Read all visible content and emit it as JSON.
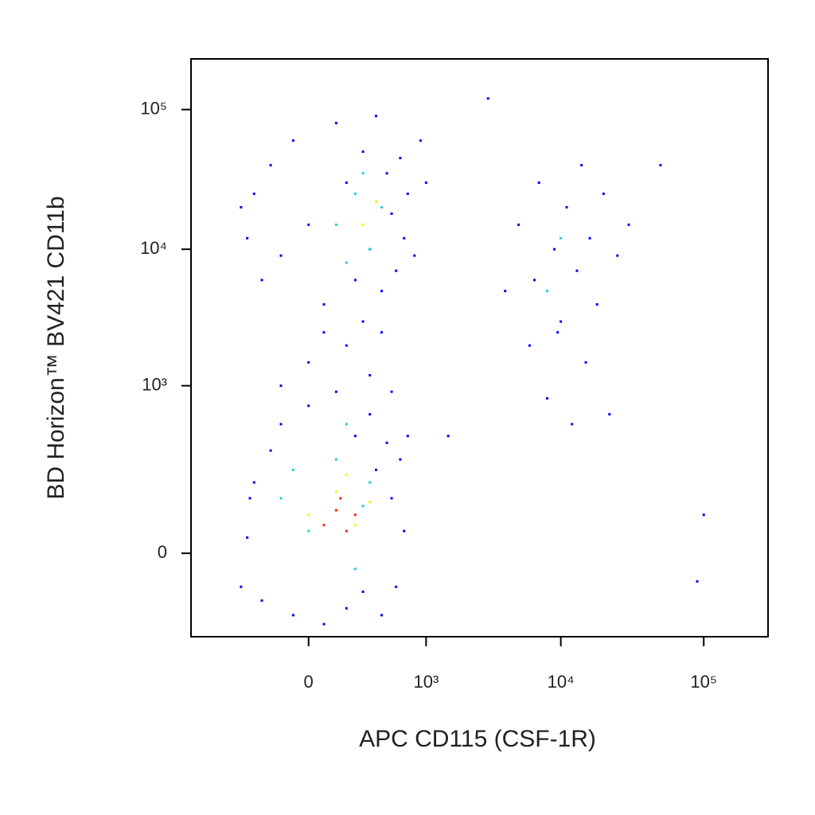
{
  "chart_data": {
    "type": "scatter",
    "scale": "biexponential",
    "x_label": "APC CD115 (CSF-1R)",
    "y_label": "BD Horizon™ BV421 CD11b",
    "xlim": [
      -1000,
      280000
    ],
    "ylim": [
      -200,
      230000
    ],
    "xticks": [
      0,
      {
        "value": 1000,
        "label": "10³"
      },
      {
        "value": 10000,
        "label": "10⁴"
      },
      {
        "value": 100000,
        "label": "10⁵"
      }
    ],
    "yticks": [
      0,
      {
        "value": 1000,
        "label": "10³"
      },
      {
        "value": 10000,
        "label": "10⁴"
      },
      {
        "value": 100000,
        "label": "10⁵"
      }
    ],
    "series": [
      {
        "color": "#0000ff",
        "x": [
          -300,
          -250,
          -200,
          -150,
          -100,
          -50,
          0,
          50,
          100,
          150,
          200,
          250,
          300,
          350,
          400,
          450,
          500,
          550,
          600,
          650,
          700,
          -350,
          -280,
          0,
          150,
          300,
          400,
          -100,
          500,
          250,
          50,
          -300,
          -250,
          -200,
          -150,
          -100,
          -50,
          0,
          50,
          100,
          150,
          200,
          250,
          300,
          350,
          400,
          450,
          500,
          550,
          600,
          650,
          700,
          800,
          900,
          -350,
          1000,
          4000,
          5000,
          6000,
          7000,
          8000,
          9000,
          10000,
          11000,
          12000,
          13000,
          14000,
          15000,
          16000,
          18000,
          20000,
          22000,
          25000,
          30000,
          6500,
          9500,
          100000,
          90000,
          1500,
          3000,
          50000
        ],
        "y": [
          20,
          150,
          -80,
          300,
          500,
          -120,
          700,
          -150,
          900,
          -100,
          400,
          -60,
          600,
          200,
          -120,
          350,
          100,
          -50,
          250,
          30,
          400,
          -50,
          100,
          1500,
          2000,
          1200,
          2500,
          1000,
          900,
          3000,
          2500,
          12000,
          25000,
          6000,
          40000,
          9000,
          60000,
          15000,
          4000,
          80000,
          30000,
          6000,
          50000,
          10000,
          90000,
          5000,
          35000,
          18000,
          7000,
          45000,
          12000,
          25000,
          9000,
          60000,
          20000,
          30000,
          5000,
          15000,
          2000,
          30000,
          800,
          10000,
          3000,
          20000,
          500,
          7000,
          40000,
          1500,
          12000,
          4000,
          25000,
          600,
          9000,
          15000,
          6000,
          2500,
          60,
          -40,
          400,
          120000,
          40000
        ]
      },
      {
        "color": "#22ccdd",
        "x": [
          -100,
          0,
          100,
          200,
          300,
          -50,
          150,
          250,
          100,
          200,
          300,
          400,
          250,
          150,
          8000,
          10000
        ],
        "y": [
          100,
          30,
          250,
          -20,
          150,
          200,
          500,
          80,
          15000,
          25000,
          10000,
          20000,
          35000,
          8000,
          5000,
          12000
        ]
      },
      {
        "color": "#ffee00",
        "x": [
          0,
          100,
          200,
          300,
          250,
          350,
          150
        ],
        "y": [
          60,
          120,
          40,
          90,
          15000,
          22000,
          180
        ]
      },
      {
        "color": "#ff2200",
        "x": [
          50,
          100,
          150,
          200,
          120
        ],
        "y": [
          40,
          70,
          30,
          60,
          100
        ]
      }
    ]
  }
}
